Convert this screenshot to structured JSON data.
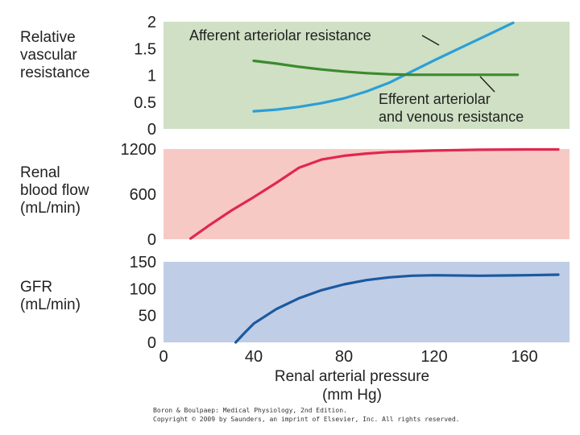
{
  "colors": {
    "panel_resistance_bg": "#cfe0c4",
    "panel_flow_bg": "#f7c9c4",
    "panel_gfr_bg": "#c0cde6",
    "afferent": "#2a9fd8",
    "efferent": "#3c8a2e",
    "rbf": "#e0284f",
    "gfr": "#1a5aa0"
  },
  "credit": {
    "line1": "Boron & Boulpaep: Medical Physiology, 2nd Edition.",
    "line2": "Copyright © 2009 by Saunders, an imprint of Elsevier, Inc. All rights reserved."
  },
  "chart_data": [
    {
      "type": "line",
      "panel": "resistance",
      "ylabel": [
        "Relative",
        "vascular",
        "resistance"
      ],
      "ylim": [
        0,
        2
      ],
      "yticks": [
        0,
        0.5,
        1,
        1.5,
        2
      ],
      "ytick_labels": [
        "0",
        "0.5",
        "1",
        "1.5",
        "2"
      ],
      "xlim": [
        0,
        180
      ],
      "series": [
        {
          "name": "Afferent arteriolar resistance",
          "label": [
            "Afferent arteriolar resistance"
          ],
          "color_key": "afferent",
          "x": [
            40,
            50,
            60,
            70,
            80,
            90,
            100,
            110,
            120,
            130,
            140,
            150,
            155
          ],
          "y": [
            0.33,
            0.36,
            0.41,
            0.48,
            0.57,
            0.7,
            0.86,
            1.07,
            1.28,
            1.48,
            1.68,
            1.88,
            1.98
          ]
        },
        {
          "name": "Efferent arteriolar and venous resistance",
          "label": [
            "Efferent arteriolar",
            "and venous resistance"
          ],
          "color_key": "efferent",
          "x": [
            40,
            50,
            60,
            70,
            80,
            90,
            100,
            110,
            120,
            130,
            140,
            150,
            157
          ],
          "y": [
            1.27,
            1.22,
            1.16,
            1.11,
            1.07,
            1.04,
            1.02,
            1.01,
            1.01,
            1.01,
            1.01,
            1.01,
            1.01
          ]
        }
      ]
    },
    {
      "type": "line",
      "panel": "renal_blood_flow",
      "ylabel": [
        "Renal",
        "blood flow",
        "(mL/min)"
      ],
      "ylim": [
        0,
        1200
      ],
      "yticks": [
        0,
        600,
        1200
      ],
      "ytick_labels": [
        "0",
        "600",
        "1200"
      ],
      "xlim": [
        0,
        180
      ],
      "series": [
        {
          "name": "Renal blood flow",
          "color_key": "rbf",
          "x": [
            12,
            20,
            30,
            40,
            50,
            60,
            70,
            80,
            90,
            100,
            120,
            140,
            160,
            175
          ],
          "y": [
            10,
            180,
            380,
            560,
            750,
            950,
            1060,
            1110,
            1140,
            1160,
            1180,
            1190,
            1195,
            1195
          ]
        }
      ]
    },
    {
      "type": "line",
      "panel": "gfr",
      "ylabel": [
        "GFR",
        "(mL/min)"
      ],
      "ylim": [
        0,
        150
      ],
      "yticks": [
        0,
        50,
        100,
        150
      ],
      "ytick_labels": [
        "0",
        "50",
        "100",
        "150"
      ],
      "xlim": [
        0,
        180
      ],
      "xticks": [
        0,
        40,
        80,
        120,
        160
      ],
      "xtick_labels": [
        "0",
        "40",
        "80",
        "120",
        "160"
      ],
      "xlabel": [
        "Renal arterial pressure",
        "(mm Hg)"
      ],
      "series": [
        {
          "name": "GFR",
          "color_key": "gfr",
          "x": [
            32,
            36,
            40,
            50,
            60,
            70,
            80,
            90,
            100,
            110,
            120,
            140,
            160,
            175
          ],
          "y": [
            0,
            18,
            35,
            62,
            82,
            97,
            108,
            116,
            121,
            124,
            125,
            124,
            125,
            126
          ]
        }
      ]
    }
  ]
}
